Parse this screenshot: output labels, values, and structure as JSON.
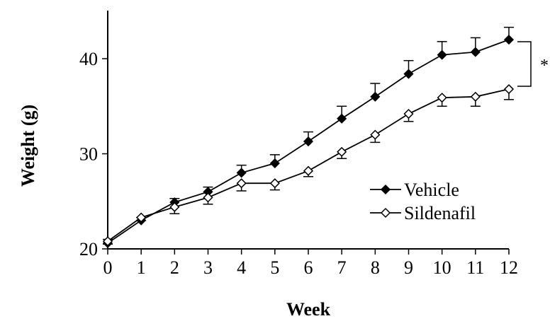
{
  "chart_data": {
    "type": "line",
    "title": "",
    "xlabel": "Week",
    "ylabel": "Weight (g)",
    "x": [
      0,
      1,
      2,
      3,
      4,
      5,
      6,
      7,
      8,
      9,
      10,
      11,
      12
    ],
    "x_ticks": [
      "0",
      "1",
      "2",
      "3",
      "4",
      "5",
      "6",
      "7",
      "8",
      "9",
      "10",
      "11",
      "12"
    ],
    "y_ticks": [
      "20",
      "30",
      "40"
    ],
    "xlim": [
      0,
      12
    ],
    "ylim": [
      20,
      45
    ],
    "grid": false,
    "legend_position": "right",
    "series": [
      {
        "name": "Vehicle",
        "marker": "filled-diamond",
        "values": [
          20.6,
          23.0,
          24.9,
          26.0,
          28.0,
          29.0,
          31.3,
          33.7,
          36.0,
          38.4,
          40.4,
          40.7,
          42.0
        ],
        "error": [
          0.4,
          0.3,
          0.4,
          0.5,
          0.8,
          0.9,
          1.0,
          1.3,
          1.4,
          1.4,
          1.4,
          1.5,
          1.3
        ],
        "error_direction": "up"
      },
      {
        "name": "Sildenafil",
        "marker": "open-diamond",
        "values": [
          20.8,
          23.3,
          24.4,
          25.4,
          26.9,
          26.9,
          28.2,
          30.2,
          32.0,
          34.2,
          35.9,
          36.0,
          36.8
        ],
        "error": [
          0.3,
          0.3,
          0.7,
          0.7,
          0.8,
          0.7,
          0.6,
          0.7,
          0.8,
          0.8,
          0.9,
          1.0,
          1.1
        ],
        "error_direction": "down"
      }
    ],
    "annotation": "*"
  }
}
